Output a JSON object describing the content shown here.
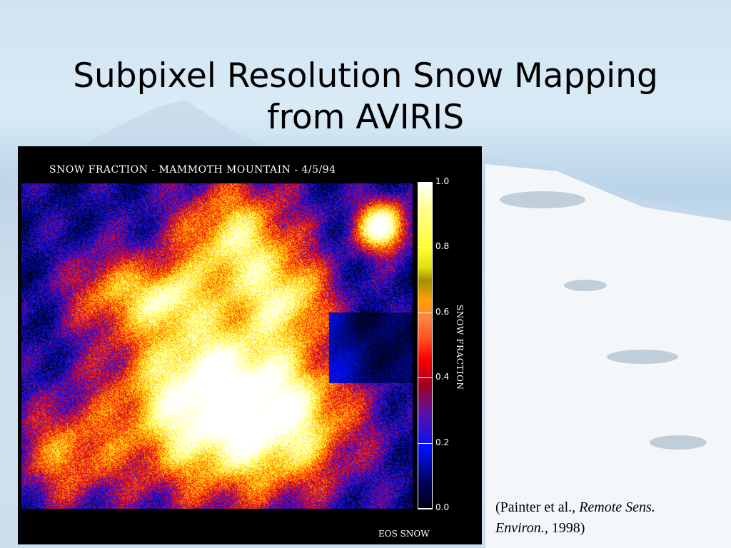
{
  "slide": {
    "title_line1": "Subpixel Resolution Snow Mapping",
    "title_line2": "from AVIRIS"
  },
  "figure": {
    "title": "SNOW FRACTION - MAMMOTH MOUNTAIN - 4/5/94",
    "colorbar_label": "SNOW FRACTION",
    "colorbar_ticks": [
      "0.0",
      "0.2",
      "0.4",
      "0.6",
      "0.8",
      "1.0"
    ],
    "colorbar_range": [
      0,
      1
    ],
    "colormap_stops": [
      "#000010",
      "#0010ff",
      "#6010a0",
      "#ff0000",
      "#ffa000",
      "#ffff30",
      "#ffffff"
    ],
    "footer": "EOS SNOW"
  },
  "citation": {
    "prefix": "(Painter et al., ",
    "journal_line1": "Remote Sens.",
    "journal_line2": "Environ.,",
    "year": " 1998)"
  }
}
